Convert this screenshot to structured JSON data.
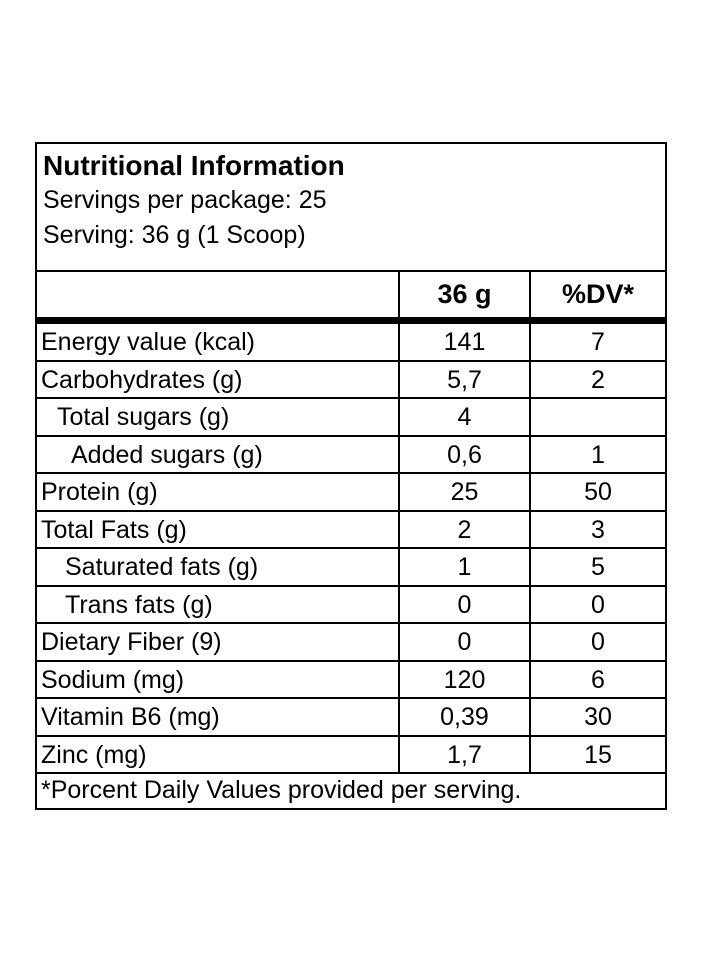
{
  "label": {
    "title": "Nutritional Information",
    "servings_per_package": "Servings per package: 25",
    "serving_size": "Serving: 36 g (1 Scoop)",
    "columns": {
      "nutrient": "",
      "amount": "36 g",
      "dv": "%DV*"
    },
    "rows": [
      {
        "nutrient": "Energy value (kcal)",
        "amount": "141",
        "dv": "7"
      },
      {
        "nutrient": "Carbohydrates (g)",
        "amount": "5,7",
        "dv": "2"
      },
      {
        "nutrient": "Total sugars (g)",
        "amount": "4",
        "dv": ""
      },
      {
        "nutrient": "Added sugars (g)",
        "amount": "0,6",
        "dv": "1"
      },
      {
        "nutrient": "Protein (g)",
        "amount": "25",
        "dv": "50"
      },
      {
        "nutrient": "Total Fats (g)",
        "amount": "2",
        "dv": "3"
      },
      {
        "nutrient": "Saturated fats (g)",
        "amount": "1",
        "dv": "5"
      },
      {
        "nutrient": "Trans fats (g)",
        "amount": "0",
        "dv": "0"
      },
      {
        "nutrient": "Dietary Fiber (9)",
        "amount": "0",
        "dv": "0"
      },
      {
        "nutrient": "Sodium (mg)",
        "amount": "120",
        "dv": "6"
      },
      {
        "nutrient": "Vitamin B6 (mg)",
        "amount": "0,39",
        "dv": "30"
      },
      {
        "nutrient": "Zinc (mg)",
        "amount": "1,7",
        "dv": "15"
      }
    ],
    "footnote": "*Porcent Daily Values provided per serving."
  }
}
